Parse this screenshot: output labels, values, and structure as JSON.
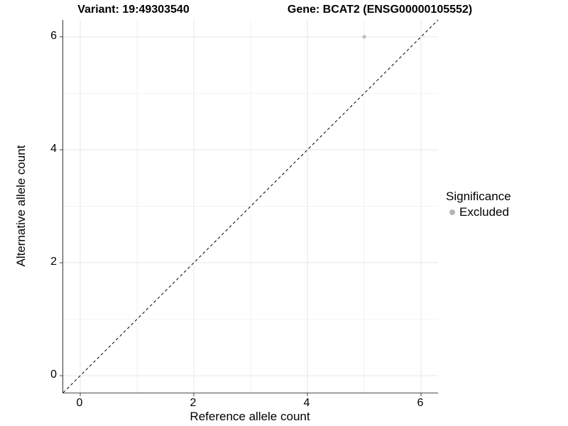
{
  "titles": {
    "variant": "Variant: 19:49303540",
    "gene": "Gene: BCAT2 (ENSG00000105552)"
  },
  "chart_data": {
    "type": "scatter",
    "title_left": "Variant: 19:49303540",
    "title_right": "Gene: BCAT2 (ENSG00000105552)",
    "xlabel": "Reference allele count",
    "ylabel": "Alternative allele count",
    "xlim": [
      -0.3,
      6.3
    ],
    "ylim": [
      -0.3,
      6.3
    ],
    "xticks": [
      0,
      2,
      4,
      6
    ],
    "yticks": [
      0,
      2,
      4,
      6
    ],
    "minor_gridlines": [
      1,
      3,
      5
    ],
    "grid": true,
    "points": [
      {
        "x": 5,
        "y": 6,
        "series": "Excluded"
      }
    ],
    "identity_line": {
      "type": "dashed",
      "slope": 1,
      "intercept": 0
    },
    "legend": {
      "title": "Significance",
      "position": "right",
      "entries": [
        {
          "label": "Excluded",
          "color": "#b5b5b5"
        }
      ]
    },
    "colors": {
      "point": "#bdbdbd",
      "major_grid": "#e6e6e6",
      "minor_grid": "#f2f2f2",
      "axis_line": "#404040",
      "dashed_line": "#000000",
      "background": "#ffffff"
    },
    "point_radius_px": 2.6
  }
}
